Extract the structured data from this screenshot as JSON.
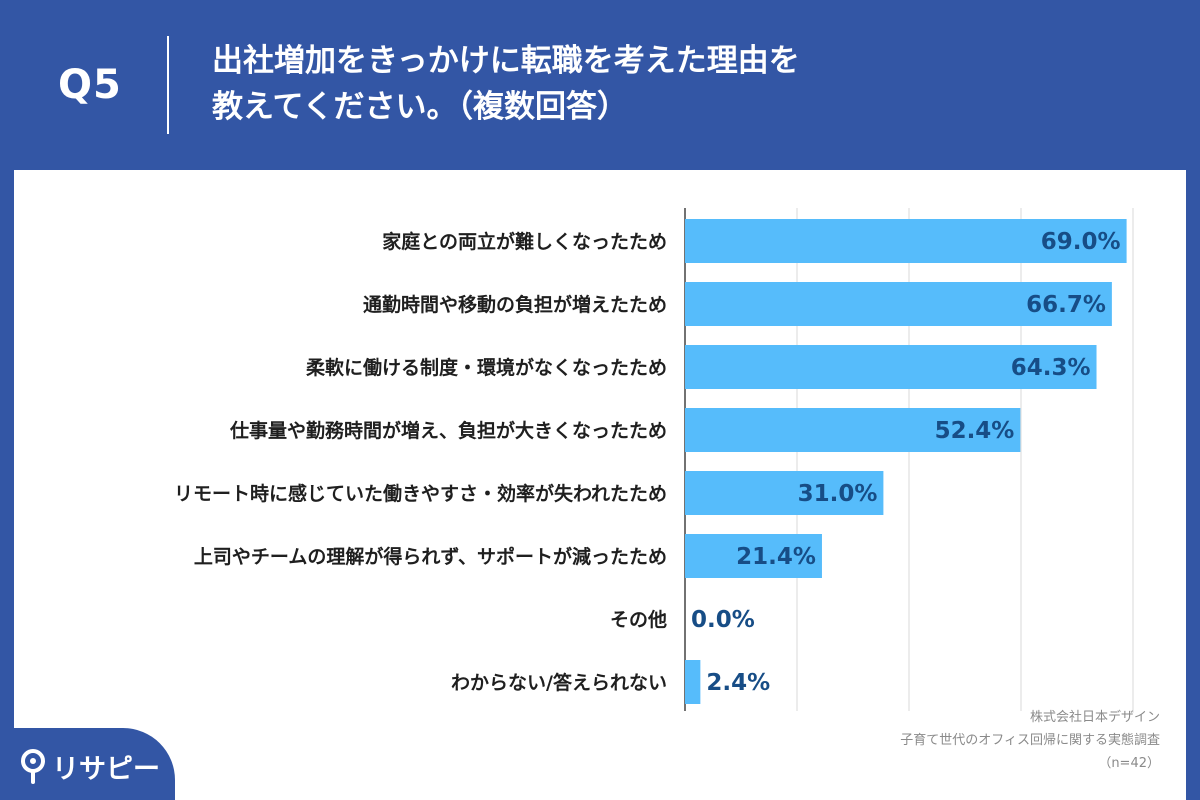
{
  "header": {
    "question_label": "Q5",
    "title_line1": "出社増加をきっかけに転職を考えた理由を",
    "title_line2": "教えてください。（複数回答）"
  },
  "source": {
    "company": "株式会社日本デザイン",
    "survey": "子育て世代のオフィス回帰に関する実態調査",
    "sample": "（n=42）"
  },
  "logo": {
    "text": "リサピー",
    "icon": "map-pin-icon"
  },
  "colors": {
    "bar": "#56bcfb",
    "value_label": "#174d86",
    "header_bg": "#3356a5",
    "grid": "#d9d9d9"
  },
  "chart_data": {
    "type": "bar",
    "orientation": "horizontal",
    "categories": [
      "家庭との両立が難しくなったため",
      "通勤時間や移動の負担が増えたため",
      "柔軟に働ける制度・環境がなくなったため",
      "仕事量や勤務時間が増え、負担が大きくなったため",
      "リモート時に感じていた働きやすさ・効率が失われたため",
      "上司やチームの理解が得られず、サポートが減ったため",
      "その他",
      "わからない/答えられない"
    ],
    "values": [
      69.0,
      66.7,
      64.3,
      52.4,
      31.0,
      21.4,
      0.0,
      2.4
    ],
    "value_labels": [
      "69.0%",
      "66.7%",
      "64.3%",
      "52.4%",
      "31.0%",
      "21.4%",
      "0.0%",
      "2.4%"
    ],
    "xlim": [
      0,
      70
    ],
    "grid": true,
    "legend": false
  }
}
